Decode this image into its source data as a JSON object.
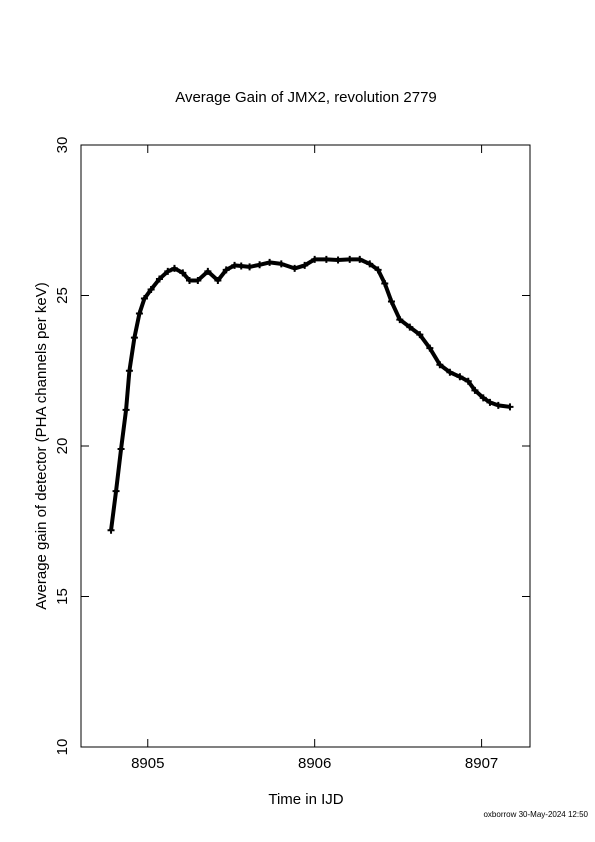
{
  "chart_data": {
    "type": "scatter",
    "title": "Average Gain of JMX2, revolution 2779",
    "x_label": "Time in IJD",
    "y_label": "Average gain of detector (PHA channels per keV)",
    "footer": "oxborrow 30-May-2024 12:50",
    "xlim": [
      8904.6,
      8907.29
    ],
    "ylim": [
      10,
      30
    ],
    "xticks": [
      8905,
      8906,
      8907
    ],
    "yticks": [
      10,
      15,
      20,
      25,
      30
    ],
    "marker": "+",
    "series": [
      {
        "name": "JMX2",
        "color": "#000000",
        "x": [
          8904.78,
          8904.81,
          8904.84,
          8904.87,
          8904.89,
          8904.92,
          8904.95,
          8904.98,
          8905.02,
          8905.07,
          8905.12,
          8905.16,
          8905.21,
          8905.25,
          8905.3,
          8905.36,
          8905.42,
          8905.47,
          8905.52,
          8905.56,
          8905.61,
          8905.67,
          8905.73,
          8905.8,
          8905.88,
          8905.94,
          8906.0,
          8906.07,
          8906.14,
          8906.21,
          8906.27,
          8906.33,
          8906.38,
          8906.42,
          8906.46,
          8906.51,
          8906.57,
          8906.63,
          8906.69,
          8906.75,
          8906.81,
          8906.87,
          8906.92,
          8906.96,
          8907.01,
          8907.05,
          8907.1,
          8907.17
        ],
        "y": [
          17.2,
          18.5,
          19.9,
          21.2,
          22.5,
          23.6,
          24.4,
          24.9,
          25.2,
          25.55,
          25.8,
          25.9,
          25.75,
          25.5,
          25.5,
          25.8,
          25.5,
          25.85,
          26.0,
          25.98,
          25.95,
          26.02,
          26.1,
          26.05,
          25.9,
          26.0,
          26.2,
          26.2,
          26.18,
          26.2,
          26.2,
          26.05,
          25.85,
          25.4,
          24.8,
          24.2,
          23.95,
          23.7,
          23.25,
          22.7,
          22.45,
          22.3,
          22.15,
          21.85,
          21.6,
          21.45,
          21.35,
          21.3
        ]
      }
    ]
  }
}
